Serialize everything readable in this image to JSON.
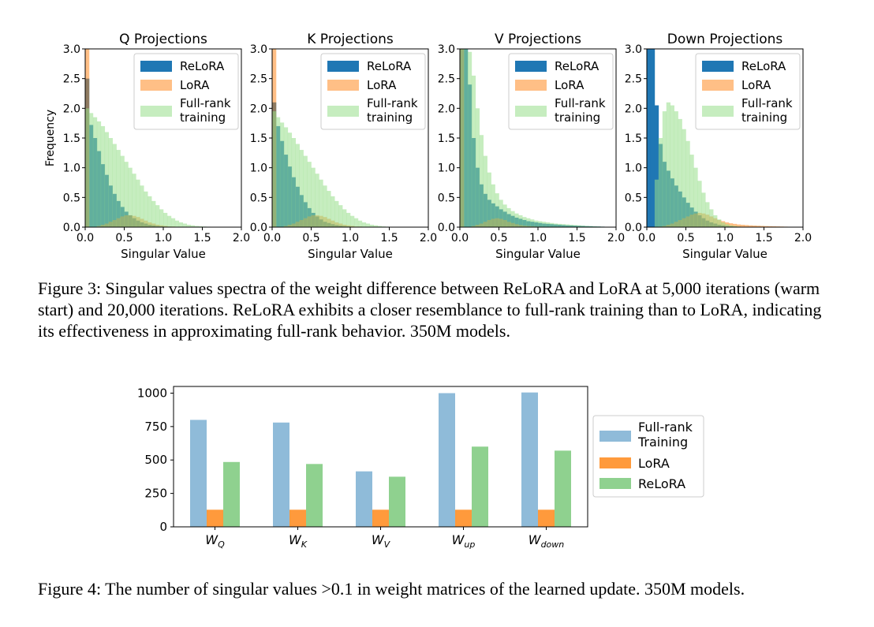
{
  "figure3": {
    "caption": "Figure 3: Singular values spectra of the weight difference between ReLoRA and LoRA at 5,000 iterations (warm start) and 20,000 iterations. ReLoRA exhibits a closer resemblance to full-rank training than to LoRA, indicating its effectiveness in approximating full-rank behavior. 350M models."
  },
  "figure4": {
    "caption": "Figure 4: The number of singular values >0.1 in weight matrices of the learned update. 350M models."
  },
  "colors": {
    "relora_hist": "#1f77b4",
    "lora_hist": "#ff7f0e",
    "fullrank_hist": "#98df8a",
    "bar_fullrank": "#8fbbd9",
    "bar_lora": "#ff9a3c",
    "bar_relora": "#8fd18f"
  },
  "chart_data": [
    {
      "type": "bar",
      "title": "Q Projections",
      "xlabel": "Singular Value",
      "ylabel": "Frequency",
      "xlim": [
        0,
        2.0
      ],
      "ylim": [
        0,
        3.0
      ],
      "xticks": [
        "0.0",
        "0.5",
        "1.0",
        "1.5",
        "2.0"
      ],
      "yticks": [
        "0.0",
        "0.5",
        "1.0",
        "1.5",
        "2.0",
        "2.5",
        "3.0"
      ],
      "legend": "top-right",
      "legend_labels": [
        "ReLoRA",
        "LoRA",
        "Full-rank",
        "training"
      ],
      "x": [
        0.0,
        0.05,
        0.1,
        0.15,
        0.2,
        0.25,
        0.3,
        0.35,
        0.4,
        0.45,
        0.5,
        0.55,
        0.6,
        0.65,
        0.7,
        0.75,
        0.8,
        0.85,
        0.9,
        0.95,
        1.0,
        1.05,
        1.1,
        1.15,
        1.2,
        1.25,
        1.3,
        1.35,
        1.4,
        1.45,
        1.5,
        1.55,
        1.6,
        1.65,
        1.7,
        1.75,
        1.8,
        1.85,
        1.9,
        1.95
      ],
      "series": [
        {
          "name": "ReLoRA",
          "values": [
            2.5,
            1.72,
            1.5,
            1.28,
            1.06,
            0.88,
            0.7,
            0.56,
            0.44,
            0.34,
            0.26,
            0.2,
            0.15,
            0.11,
            0.08,
            0.06,
            0.04,
            0.03,
            0.02,
            0.015,
            0.01,
            0.008,
            0.006,
            0.005,
            0.004,
            0.003,
            0.002,
            0.002,
            0.001,
            0.001,
            0.001,
            0.0,
            0.0,
            0.0,
            0.0,
            0.0,
            0.0,
            0.0,
            0.0,
            0.0
          ]
        },
        {
          "name": "LoRA",
          "values": [
            3.0,
            0.0,
            0.0,
            0.02,
            0.04,
            0.06,
            0.09,
            0.12,
            0.15,
            0.18,
            0.2,
            0.2,
            0.19,
            0.17,
            0.14,
            0.11,
            0.08,
            0.06,
            0.04,
            0.03,
            0.02,
            0.01,
            0.01,
            0.005,
            0.0,
            0.0,
            0.0,
            0.0,
            0.0,
            0.0,
            0.0,
            0.0,
            0.0,
            0.0,
            0.0,
            0.0,
            0.0,
            0.0,
            0.0,
            0.0
          ]
        },
        {
          "name": "Full-rank training",
          "values": [
            2.0,
            1.92,
            1.85,
            1.78,
            1.7,
            1.6,
            1.5,
            1.4,
            1.3,
            1.2,
            1.1,
            1.0,
            0.9,
            0.8,
            0.7,
            0.6,
            0.52,
            0.44,
            0.37,
            0.3,
            0.24,
            0.19,
            0.15,
            0.11,
            0.08,
            0.06,
            0.04,
            0.03,
            0.02,
            0.015,
            0.01,
            0.007,
            0.005,
            0.003,
            0.002,
            0.001,
            0.0,
            0.0,
            0.0,
            0.0
          ]
        }
      ]
    },
    {
      "type": "bar",
      "title": "K Projections",
      "xlabel": "Singular Value",
      "ylabel": "",
      "xlim": [
        0,
        2.0
      ],
      "ylim": [
        0,
        3.0
      ],
      "xticks": [
        "0.0",
        "0.5",
        "1.0",
        "1.5",
        "2.0"
      ],
      "yticks": [
        "0.0",
        "0.5",
        "1.0",
        "1.5",
        "2.0",
        "2.5",
        "3.0"
      ],
      "legend": "top-right",
      "legend_labels": [
        "ReLoRA",
        "LoRA",
        "Full-rank",
        "training"
      ],
      "x": [
        0.0,
        0.05,
        0.1,
        0.15,
        0.2,
        0.25,
        0.3,
        0.35,
        0.4,
        0.45,
        0.5,
        0.55,
        0.6,
        0.65,
        0.7,
        0.75,
        0.8,
        0.85,
        0.9,
        0.95,
        1.0,
        1.05,
        1.1,
        1.15,
        1.2,
        1.25,
        1.3,
        1.35,
        1.4,
        1.45,
        1.5,
        1.55,
        1.6,
        1.65,
        1.7,
        1.75,
        1.8,
        1.85,
        1.9,
        1.95
      ],
      "series": [
        {
          "name": "ReLoRA",
          "values": [
            2.1,
            1.7,
            1.45,
            1.22,
            1.02,
            0.84,
            0.68,
            0.54,
            0.42,
            0.32,
            0.24,
            0.18,
            0.13,
            0.09,
            0.07,
            0.05,
            0.035,
            0.025,
            0.018,
            0.012,
            0.008,
            0.006,
            0.004,
            0.003,
            0.002,
            0.001,
            0.001,
            0.0,
            0.0,
            0.0,
            0.0,
            0.0,
            0.0,
            0.0,
            0.0,
            0.0,
            0.0,
            0.0,
            0.0,
            0.0
          ]
        },
        {
          "name": "LoRA",
          "values": [
            3.0,
            0.0,
            0.0,
            0.02,
            0.04,
            0.06,
            0.09,
            0.12,
            0.15,
            0.18,
            0.2,
            0.2,
            0.19,
            0.17,
            0.14,
            0.11,
            0.08,
            0.06,
            0.04,
            0.03,
            0.02,
            0.01,
            0.01,
            0.005,
            0.0,
            0.0,
            0.0,
            0.0,
            0.0,
            0.0,
            0.0,
            0.0,
            0.0,
            0.0,
            0.0,
            0.0,
            0.0,
            0.0,
            0.0,
            0.0
          ]
        },
        {
          "name": "Full-rank training",
          "values": [
            1.95,
            1.85,
            1.76,
            1.68,
            1.59,
            1.5,
            1.4,
            1.3,
            1.2,
            1.1,
            1.0,
            0.9,
            0.8,
            0.7,
            0.61,
            0.52,
            0.44,
            0.37,
            0.3,
            0.24,
            0.19,
            0.15,
            0.11,
            0.08,
            0.06,
            0.04,
            0.03,
            0.02,
            0.012,
            0.008,
            0.005,
            0.003,
            0.002,
            0.001,
            0.0,
            0.0,
            0.0,
            0.0,
            0.0,
            0.0
          ]
        }
      ]
    },
    {
      "type": "bar",
      "title": "V Projections",
      "xlabel": "Singular Value",
      "ylabel": "",
      "xlim": [
        0,
        2.0
      ],
      "ylim": [
        0,
        3.0
      ],
      "xticks": [
        "0.0",
        "0.5",
        "1.0",
        "1.5",
        "2.0"
      ],
      "yticks": [
        "0.0",
        "0.5",
        "1.0",
        "1.5",
        "2.0",
        "2.5",
        "3.0"
      ],
      "legend": "top-right",
      "legend_labels": [
        "ReLoRA",
        "LoRA",
        "Full-rank",
        "training"
      ],
      "x": [
        0.0,
        0.05,
        0.1,
        0.15,
        0.2,
        0.25,
        0.3,
        0.35,
        0.4,
        0.45,
        0.5,
        0.55,
        0.6,
        0.65,
        0.7,
        0.75,
        0.8,
        0.85,
        0.9,
        0.95,
        1.0,
        1.05,
        1.1,
        1.15,
        1.2,
        1.25,
        1.3,
        1.35,
        1.4,
        1.45,
        1.5,
        1.55,
        1.6,
        1.65,
        1.7,
        1.75,
        1.8,
        1.85,
        1.9,
        1.95
      ],
      "series": [
        {
          "name": "ReLoRA",
          "values": [
            3.0,
            3.0,
            2.4,
            1.5,
            1.0,
            0.72,
            0.56,
            0.46,
            0.4,
            0.35,
            0.3,
            0.26,
            0.22,
            0.19,
            0.16,
            0.14,
            0.12,
            0.1,
            0.09,
            0.08,
            0.07,
            0.06,
            0.055,
            0.05,
            0.045,
            0.04,
            0.035,
            0.03,
            0.028,
            0.025,
            0.022,
            0.02,
            0.017,
            0.015,
            0.012,
            0.01,
            0.008,
            0.006,
            0.004,
            0.002
          ]
        },
        {
          "name": "LoRA",
          "values": [
            3.0,
            0.0,
            0.0,
            0.02,
            0.04,
            0.06,
            0.09,
            0.12,
            0.14,
            0.15,
            0.14,
            0.12,
            0.09,
            0.07,
            0.05,
            0.035,
            0.025,
            0.02,
            0.015,
            0.01,
            0.008,
            0.006,
            0.004,
            0.003,
            0.002,
            0.001,
            0.0,
            0.0,
            0.0,
            0.0,
            0.0,
            0.0,
            0.0,
            0.0,
            0.0,
            0.0,
            0.0,
            0.0,
            0.0,
            0.0
          ]
        },
        {
          "name": "Full-rank training",
          "values": [
            3.0,
            3.0,
            2.95,
            2.55,
            2.0,
            1.55,
            1.2,
            0.92,
            0.72,
            0.57,
            0.46,
            0.38,
            0.32,
            0.27,
            0.23,
            0.2,
            0.17,
            0.15,
            0.13,
            0.11,
            0.1,
            0.09,
            0.08,
            0.07,
            0.06,
            0.055,
            0.05,
            0.045,
            0.04,
            0.035,
            0.03,
            0.025,
            0.02,
            0.017,
            0.014,
            0.011,
            0.008,
            0.006,
            0.004,
            0.002
          ]
        }
      ]
    },
    {
      "type": "bar",
      "title": "Down Projections",
      "xlabel": "Singular Value",
      "ylabel": "",
      "xlim": [
        0,
        2.0
      ],
      "ylim": [
        0,
        3.0
      ],
      "xticks": [
        "0.0",
        "0.5",
        "1.0",
        "1.5",
        "2.0"
      ],
      "yticks": [
        "0.0",
        "0.5",
        "1.0",
        "1.5",
        "2.0",
        "2.5",
        "3.0"
      ],
      "legend": "top-right",
      "legend_labels": [
        "ReLoRA",
        "LoRA",
        "Full-rank",
        "training"
      ],
      "x": [
        0.0,
        0.05,
        0.1,
        0.15,
        0.2,
        0.25,
        0.3,
        0.35,
        0.4,
        0.45,
        0.5,
        0.55,
        0.6,
        0.65,
        0.7,
        0.75,
        0.8,
        0.85,
        0.9,
        0.95,
        1.0,
        1.05,
        1.1,
        1.15,
        1.2,
        1.25,
        1.3,
        1.35,
        1.4,
        1.45,
        1.5,
        1.55,
        1.6,
        1.65,
        1.7,
        1.75,
        1.8,
        1.85,
        1.9,
        1.95
      ],
      "series": [
        {
          "name": "ReLoRA",
          "values": [
            3.0,
            3.0,
            2.05,
            1.4,
            1.1,
            0.95,
            0.82,
            0.7,
            0.6,
            0.5,
            0.41,
            0.33,
            0.26,
            0.2,
            0.15,
            0.11,
            0.08,
            0.06,
            0.04,
            0.03,
            0.02,
            0.015,
            0.01,
            0.007,
            0.005,
            0.003,
            0.002,
            0.001,
            0.0,
            0.0,
            0.0,
            0.0,
            0.0,
            0.0,
            0.0,
            0.0,
            0.0,
            0.0,
            0.0,
            0.0
          ]
        },
        {
          "name": "LoRA",
          "values": [
            0.0,
            0.0,
            0.0,
            0.01,
            0.02,
            0.04,
            0.06,
            0.09,
            0.12,
            0.15,
            0.18,
            0.21,
            0.23,
            0.24,
            0.23,
            0.21,
            0.18,
            0.15,
            0.12,
            0.1,
            0.08,
            0.065,
            0.055,
            0.045,
            0.04,
            0.035,
            0.03,
            0.027,
            0.024,
            0.021,
            0.018,
            0.016,
            0.014,
            0.012,
            0.01,
            0.008,
            0.006,
            0.004,
            0.002,
            0.001
          ]
        },
        {
          "name": "Full-rank training",
          "values": [
            0.0,
            0.0,
            0.8,
            1.5,
            1.95,
            2.1,
            2.05,
            1.95,
            1.82,
            1.65,
            1.45,
            1.22,
            1.0,
            0.78,
            0.58,
            0.42,
            0.3,
            0.2,
            0.13,
            0.08,
            0.05,
            0.03,
            0.02,
            0.01,
            0.005,
            0.002,
            0.0,
            0.0,
            0.0,
            0.0,
            0.0,
            0.0,
            0.0,
            0.0,
            0.0,
            0.0,
            0.0,
            0.0,
            0.0,
            0.0
          ]
        }
      ]
    },
    {
      "type": "bar",
      "title": "",
      "xlabel": "",
      "ylabel": "",
      "ylim": [
        0,
        1050
      ],
      "yticks": [
        "0",
        "250",
        "500",
        "750",
        "1000"
      ],
      "categories": [
        {
          "base": "W",
          "sub": "Q"
        },
        {
          "base": "W",
          "sub": "K"
        },
        {
          "base": "W",
          "sub": "V"
        },
        {
          "base": "W",
          "sub": "up"
        },
        {
          "base": "W",
          "sub": "down"
        }
      ],
      "legend": "right",
      "legend_labels": [
        "Full-rank",
        "Training",
        "LoRA",
        "ReLoRA"
      ],
      "series": [
        {
          "name": "Full-rank Training",
          "values": [
            800,
            780,
            415,
            1000,
            1005
          ]
        },
        {
          "name": "LoRA",
          "values": [
            128,
            128,
            128,
            128,
            128
          ]
        },
        {
          "name": "ReLoRA",
          "values": [
            485,
            470,
            375,
            600,
            570
          ]
        }
      ]
    }
  ]
}
